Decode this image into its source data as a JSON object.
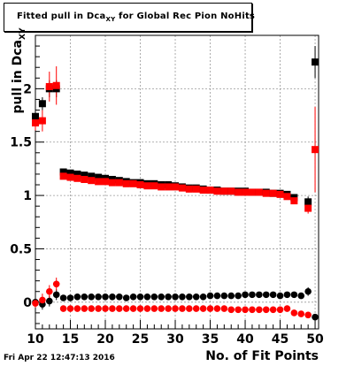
{
  "title": {
    "prefix": "Fitted pull in Dca",
    "sub": "XY",
    "suffix": "for Global Rec Pion NoHits"
  },
  "ylabel": {
    "main": "pull in Dca",
    "sub": "XY"
  },
  "xlabel": "No. of Fit Points",
  "datestamp": "Fri Apr 22 12:47:13 2016",
  "colors": {
    "black": "#000000",
    "red": "#ff0000",
    "grid": "#999999"
  },
  "chart_data": {
    "type": "scatter",
    "xlim": [
      10,
      50.5
    ],
    "ylim": [
      -0.25,
      2.5
    ],
    "grid": true,
    "x_ticks": [
      10,
      15,
      20,
      25,
      30,
      35,
      40,
      45,
      50
    ],
    "y_ticks": [
      0,
      0.5,
      1,
      1.5,
      2
    ],
    "y_tick_labels": [
      "0",
      "0.5",
      "1",
      "1.5",
      "2"
    ],
    "series": [
      {
        "color": "black",
        "marker": "square",
        "x": [
          10,
          11,
          12,
          13,
          14,
          15,
          16,
          17,
          18,
          19,
          20,
          21,
          22,
          23,
          24,
          25,
          26,
          27,
          28,
          29,
          30,
          31,
          32,
          33,
          34,
          35,
          36,
          37,
          38,
          39,
          40,
          41,
          42,
          43,
          44,
          45,
          46,
          47,
          49,
          50
        ],
        "y": [
          1.74,
          1.86,
          2.0,
          2.0,
          1.22,
          1.21,
          1.2,
          1.19,
          1.18,
          1.17,
          1.16,
          1.15,
          1.14,
          1.13,
          1.12,
          1.12,
          1.11,
          1.11,
          1.1,
          1.1,
          1.09,
          1.08,
          1.07,
          1.07,
          1.06,
          1.05,
          1.05,
          1.04,
          1.04,
          1.04,
          1.04,
          1.03,
          1.03,
          1.03,
          1.02,
          1.02,
          1.01,
          0.98,
          0.94,
          2.25
        ],
        "err": [
          0.06,
          0.06,
          0.08,
          0.08,
          0.015,
          0.01,
          0.01,
          0.01,
          0.01,
          0.01,
          0.01,
          0.01,
          0.01,
          0.01,
          0.01,
          0.01,
          0.01,
          0.01,
          0.01,
          0.01,
          0.01,
          0.01,
          0.01,
          0.01,
          0.01,
          0.01,
          0.01,
          0.01,
          0.01,
          0.01,
          0.01,
          0.01,
          0.01,
          0.01,
          0.01,
          0.01,
          0.01,
          0.02,
          0.05,
          0.15
        ]
      },
      {
        "color": "red",
        "marker": "square",
        "x": [
          10,
          11,
          12,
          13,
          14,
          15,
          16,
          17,
          18,
          19,
          20,
          21,
          22,
          23,
          24,
          25,
          26,
          27,
          28,
          29,
          30,
          31,
          32,
          33,
          34,
          35,
          36,
          37,
          38,
          39,
          40,
          41,
          42,
          43,
          44,
          45,
          46,
          47,
          49,
          50
        ],
        "y": [
          1.68,
          1.7,
          2.02,
          2.03,
          1.18,
          1.17,
          1.16,
          1.15,
          1.14,
          1.13,
          1.13,
          1.12,
          1.12,
          1.11,
          1.11,
          1.1,
          1.09,
          1.09,
          1.08,
          1.08,
          1.08,
          1.07,
          1.06,
          1.06,
          1.05,
          1.05,
          1.04,
          1.04,
          1.04,
          1.03,
          1.03,
          1.03,
          1.03,
          1.02,
          1.02,
          1.01,
          0.99,
          0.95,
          0.88,
          1.43
        ],
        "err": [
          0.07,
          0.1,
          0.14,
          0.18,
          0.02,
          0.01,
          0.01,
          0.01,
          0.01,
          0.01,
          0.01,
          0.01,
          0.01,
          0.01,
          0.01,
          0.01,
          0.01,
          0.01,
          0.01,
          0.01,
          0.01,
          0.01,
          0.01,
          0.01,
          0.01,
          0.01,
          0.01,
          0.01,
          0.01,
          0.01,
          0.01,
          0.01,
          0.01,
          0.01,
          0.01,
          0.01,
          0.01,
          0.02,
          0.05,
          0.4
        ]
      },
      {
        "color": "black",
        "marker": "circle",
        "x": [
          10,
          11,
          12,
          13,
          14,
          15,
          16,
          17,
          18,
          19,
          20,
          21,
          22,
          23,
          24,
          25,
          26,
          27,
          28,
          29,
          30,
          31,
          32,
          33,
          34,
          35,
          36,
          37,
          38,
          39,
          40,
          41,
          42,
          43,
          44,
          45,
          46,
          47,
          48,
          49,
          50
        ],
        "y": [
          0.0,
          -0.02,
          0.01,
          0.07,
          0.04,
          0.04,
          0.05,
          0.05,
          0.05,
          0.05,
          0.05,
          0.05,
          0.05,
          0.04,
          0.05,
          0.05,
          0.05,
          0.05,
          0.05,
          0.05,
          0.05,
          0.05,
          0.05,
          0.05,
          0.05,
          0.06,
          0.06,
          0.06,
          0.06,
          0.06,
          0.07,
          0.07,
          0.07,
          0.07,
          0.07,
          0.06,
          0.07,
          0.07,
          0.06,
          0.1,
          -0.14
        ],
        "err": [
          0.05,
          0.05,
          0.05,
          0.05,
          0.01,
          0.01,
          0.01,
          0.01,
          0.01,
          0.01,
          0.01,
          0.01,
          0.01,
          0.01,
          0.01,
          0.01,
          0.01,
          0.01,
          0.01,
          0.01,
          0.01,
          0.01,
          0.01,
          0.01,
          0.01,
          0.01,
          0.01,
          0.01,
          0.01,
          0.01,
          0.01,
          0.01,
          0.01,
          0.01,
          0.01,
          0.01,
          0.01,
          0.01,
          0.01,
          0.04,
          0.02
        ]
      },
      {
        "color": "red",
        "marker": "circle",
        "x": [
          10,
          11,
          12,
          13,
          14,
          15,
          16,
          17,
          18,
          19,
          20,
          21,
          22,
          23,
          24,
          25,
          26,
          27,
          28,
          29,
          30,
          31,
          32,
          33,
          34,
          35,
          36,
          37,
          38,
          39,
          40,
          41,
          42,
          43,
          44,
          45,
          46,
          47,
          48,
          49
        ],
        "y": [
          -0.01,
          0.02,
          0.1,
          0.17,
          -0.06,
          -0.06,
          -0.06,
          -0.06,
          -0.06,
          -0.06,
          -0.06,
          -0.06,
          -0.06,
          -0.06,
          -0.06,
          -0.06,
          -0.06,
          -0.06,
          -0.06,
          -0.06,
          -0.06,
          -0.06,
          -0.06,
          -0.06,
          -0.06,
          -0.06,
          -0.06,
          -0.06,
          -0.07,
          -0.07,
          -0.07,
          -0.07,
          -0.07,
          -0.07,
          -0.07,
          -0.07,
          -0.06,
          -0.1,
          -0.11,
          -0.12
        ],
        "err": [
          0.04,
          0.06,
          0.06,
          0.06,
          0.01,
          0.01,
          0.01,
          0.01,
          0.01,
          0.01,
          0.01,
          0.01,
          0.01,
          0.01,
          0.01,
          0.01,
          0.01,
          0.01,
          0.01,
          0.01,
          0.01,
          0.01,
          0.01,
          0.01,
          0.01,
          0.01,
          0.01,
          0.01,
          0.01,
          0.01,
          0.01,
          0.01,
          0.01,
          0.01,
          0.01,
          0.01,
          0.01,
          0.01,
          0.01,
          0.02
        ]
      }
    ]
  }
}
